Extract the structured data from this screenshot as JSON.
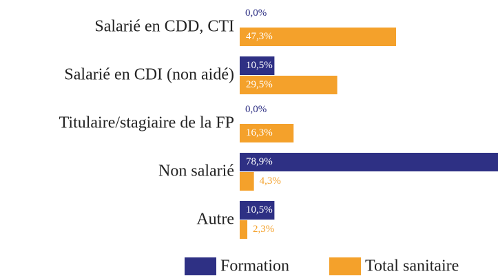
{
  "chart_data": {
    "type": "bar",
    "orientation": "horizontal",
    "categories": [
      "Salarié en CDD, CTI",
      "Salarié en CDI (non aidé)",
      "Titulaire/stagiaire de la FP",
      "Non salarié",
      "Autre"
    ],
    "series": [
      {
        "name": "Formation",
        "color": "#2e3084",
        "values": [
          0,
          10.5,
          0,
          78.9,
          10.5
        ],
        "value_labels": [
          "0,0%",
          "10,5%",
          "0,0%",
          "78,9%",
          "10,5%"
        ]
      },
      {
        "name": "Total sanitaire",
        "color": "#f4a12b",
        "values": [
          47.3,
          29.5,
          16.3,
          4.3,
          2.3
        ],
        "value_labels": [
          "47,3%",
          "29,5%",
          "16,3%",
          "4,3%",
          "2,3%"
        ]
      }
    ],
    "legend": "bottom"
  }
}
